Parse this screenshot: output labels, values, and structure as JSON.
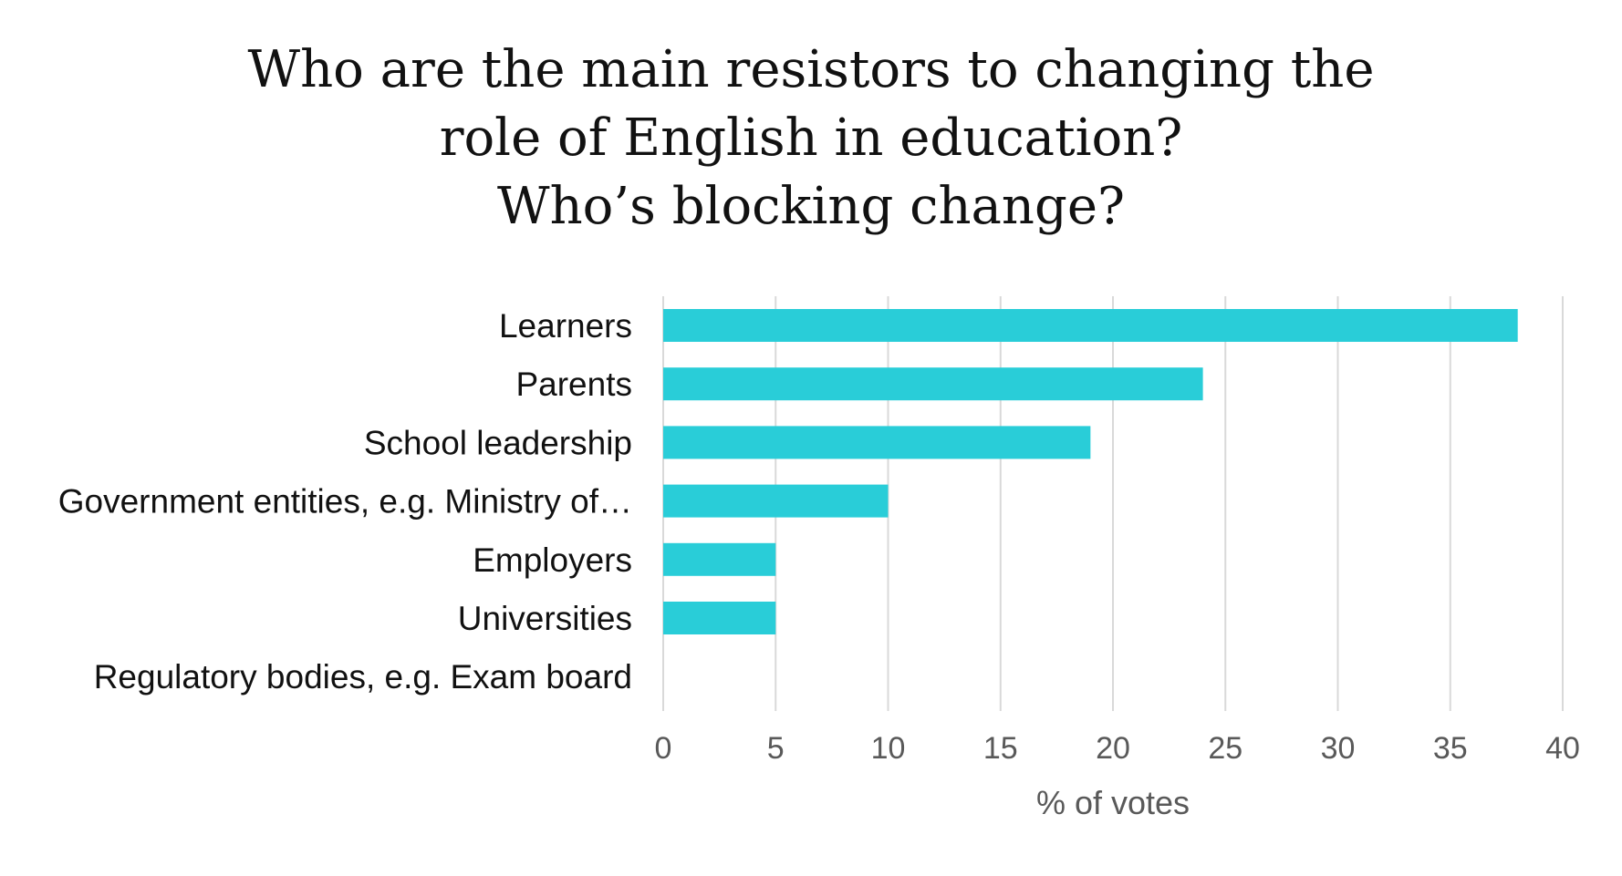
{
  "chart_data": {
    "type": "bar",
    "orientation": "horizontal",
    "title_lines": [
      "Who are the main resistors to changing the",
      "role of English in education?",
      "Who’s blocking change?"
    ],
    "categories": [
      "Learners",
      "Parents",
      "School leadership",
      "Government entities, e.g. Ministry of…",
      "Employers",
      "Universities",
      "Regulatory bodies, e.g. Exam board"
    ],
    "values": [
      38,
      24,
      19,
      10,
      5,
      5,
      0
    ],
    "xlabel": "% of votes",
    "ylabel": "",
    "xlim": [
      0,
      40
    ],
    "xticks": [
      0,
      5,
      10,
      15,
      20,
      25,
      30,
      35,
      40
    ],
    "grid": "vertical",
    "legend": "none",
    "bar_color": "#29CDD8",
    "grid_color": "#D9D9D9"
  }
}
